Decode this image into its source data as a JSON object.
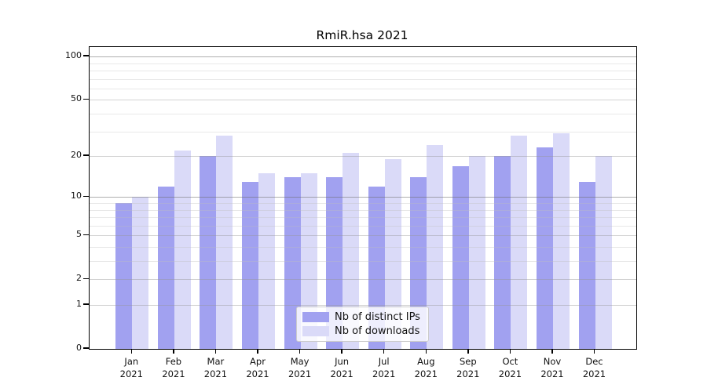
{
  "chart_data": {
    "type": "bar",
    "title": "RmiR.hsa 2021",
    "xlabel": "",
    "ylabel": "",
    "x_year": "2021",
    "categories": [
      "Jan",
      "Feb",
      "Mar",
      "Apr",
      "May",
      "Jun",
      "Jul",
      "Aug",
      "Sep",
      "Oct",
      "Nov",
      "Dec"
    ],
    "series": [
      {
        "key": "distinct-ips",
        "name": "Nb of distinct IPs",
        "color": "#a1a1f0",
        "values": [
          9,
          12,
          20,
          13,
          14,
          14,
          12,
          14,
          17,
          20,
          23,
          13
        ]
      },
      {
        "key": "downloads",
        "name": "Nb of downloads",
        "color": "#dadaf8",
        "values": [
          10,
          22,
          28,
          15,
          15,
          21,
          19,
          24,
          20,
          28,
          29,
          20
        ]
      }
    ],
    "yscale": "log1p",
    "ylim": [
      0,
      116
    ],
    "ytick_labels": [
      100,
      50,
      20,
      10,
      5,
      2,
      1,
      0
    ],
    "grid": {
      "major": [
        10,
        100
      ],
      "mid": [
        1,
        2,
        5,
        20,
        50
      ],
      "minor": [
        3,
        4,
        6,
        7,
        8,
        9,
        30,
        40,
        60,
        70,
        80,
        90
      ]
    },
    "grid_on": true,
    "legend_position": "bottom-center"
  }
}
